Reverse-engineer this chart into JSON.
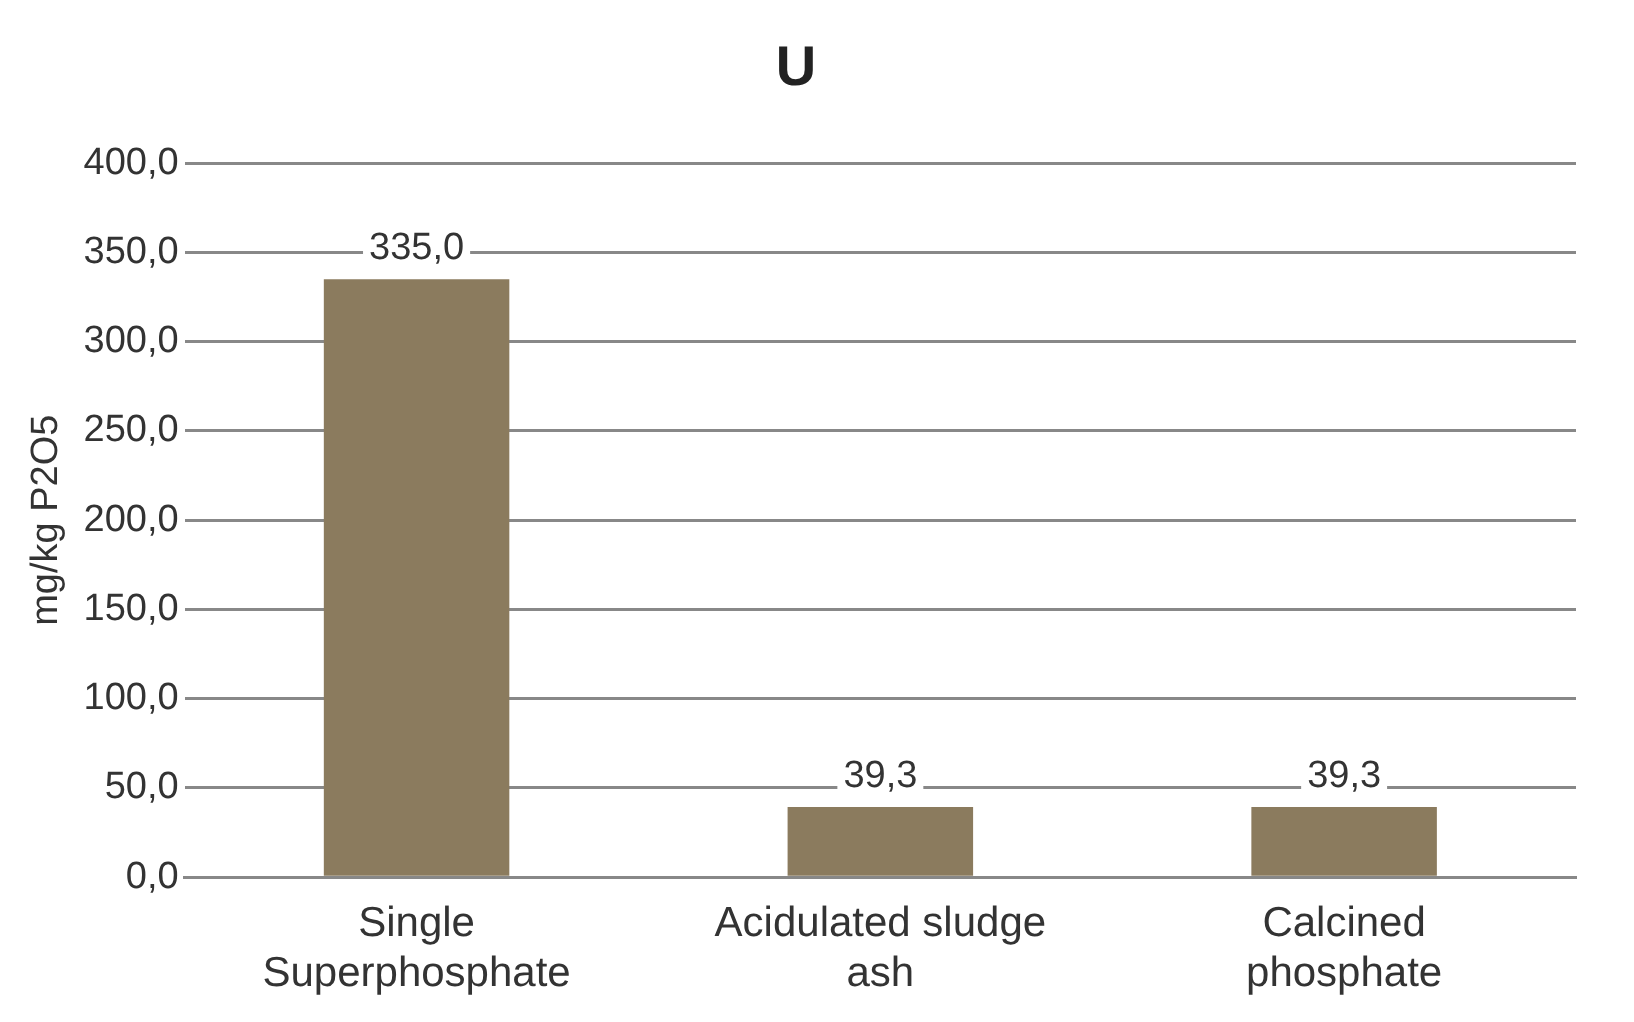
{
  "chart_data": {
    "type": "bar",
    "title": "U",
    "ylabel": "mg/kg P2O5",
    "categories": [
      "Single Superphosphate",
      "Acidulated sludge ash",
      "Calcined phosphate"
    ],
    "values": [
      335.0,
      39.3,
      39.3
    ],
    "value_labels": [
      "335,0",
      "39,3",
      "39,3"
    ],
    "color": "#8b7b5e",
    "ylim": [
      0,
      400
    ],
    "yticks": [
      {
        "value": 0,
        "label": "0,0"
      },
      {
        "value": 50,
        "label": "50,0"
      },
      {
        "value": 100,
        "label": "100,0"
      },
      {
        "value": 150,
        "label": "150,0"
      },
      {
        "value": 200,
        "label": "200,0"
      },
      {
        "value": 250,
        "label": "250,0"
      },
      {
        "value": 300,
        "label": "300,0"
      },
      {
        "value": 350,
        "label": "350,0"
      },
      {
        "value": 400,
        "label": "400,0"
      }
    ],
    "grid": "y",
    "legend": false
  }
}
